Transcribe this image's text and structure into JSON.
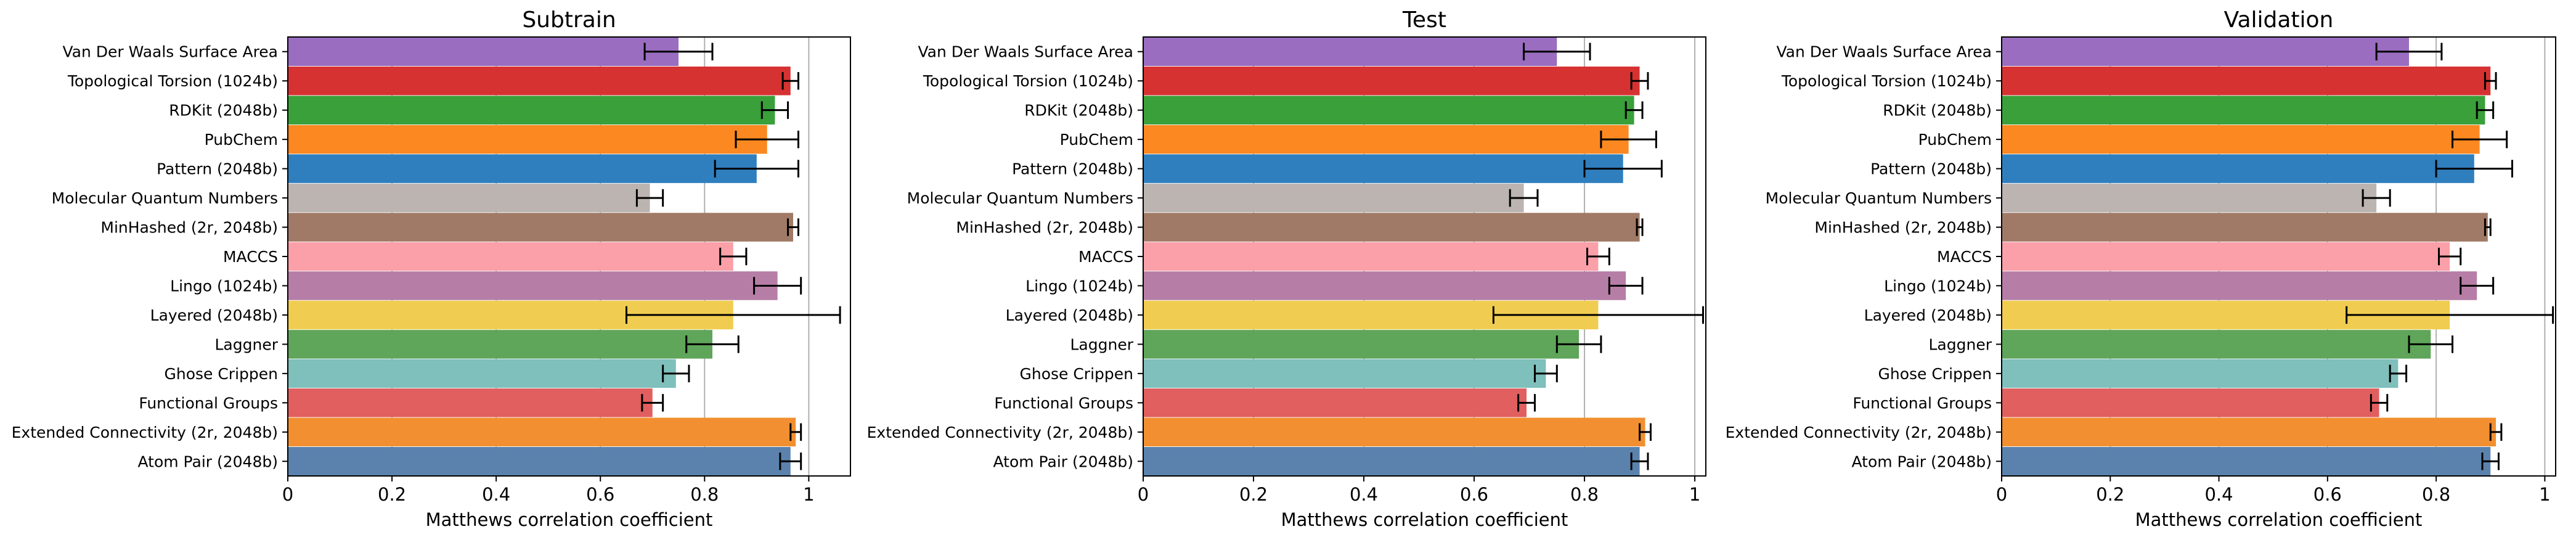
{
  "figure": {
    "charts_count": 3
  },
  "categories": [
    "Van Der Waals Surface Area",
    "Topological Torsion (1024b)",
    "RDKit (2048b)",
    "PubChem",
    "Pattern (2048b)",
    "Molecular Quantum Numbers",
    "MinHashed (2r, 2048b)",
    "MACCS",
    "Lingo (1024b)",
    "Layered (2048b)",
    "Laggner",
    "Ghose Crippen",
    "Functional Groups",
    "Extended Connectivity (2r, 2048b)",
    "Atom Pair (2048b)"
  ],
  "colors": [
    "#9a6dc0",
    "#d63232",
    "#3aa03a",
    "#fb8820",
    "#2f7fbf",
    "#bbb4b0",
    "#a07a66",
    "#fba0a8",
    "#b67ea6",
    "#f0cd50",
    "#5fa55a",
    "#7fbfbc",
    "#e15f5f",
    "#f28f30",
    "#5a82ad"
  ],
  "chart_data": [
    {
      "type": "bar",
      "orientation": "horizontal",
      "title": "Subtrain",
      "xlabel": "Matthews correlation coefficient",
      "xlim": [
        0,
        1.08
      ],
      "xticks": [
        0,
        0.2,
        0.4,
        0.6,
        0.8,
        1
      ],
      "xtick_labels": [
        "0",
        "0.2",
        "0.4",
        "0.6",
        "0.8",
        "1"
      ],
      "grid": "x",
      "values": [
        0.75,
        0.965,
        0.935,
        0.92,
        0.9,
        0.695,
        0.97,
        0.855,
        0.94,
        0.855,
        0.815,
        0.745,
        0.7,
        0.975,
        0.965
      ],
      "errors": [
        0.065,
        0.015,
        0.025,
        0.06,
        0.08,
        0.025,
        0.01,
        0.025,
        0.045,
        0.205,
        0.05,
        0.025,
        0.02,
        0.01,
        0.02
      ]
    },
    {
      "type": "bar",
      "orientation": "horizontal",
      "title": "Test",
      "xlabel": "Matthews correlation coefficient",
      "xlim": [
        0,
        1.02
      ],
      "xticks": [
        0,
        0.2,
        0.4,
        0.6,
        0.8,
        1
      ],
      "xtick_labels": [
        "0",
        "0.2",
        "0.4",
        "0.6",
        "0.8",
        "1"
      ],
      "grid": "x",
      "values": [
        0.75,
        0.9,
        0.89,
        0.88,
        0.87,
        0.69,
        0.9,
        0.825,
        0.875,
        0.825,
        0.79,
        0.73,
        0.695,
        0.91,
        0.9
      ],
      "errors": [
        0.06,
        0.015,
        0.015,
        0.05,
        0.07,
        0.025,
        0.005,
        0.02,
        0.03,
        0.19,
        0.04,
        0.02,
        0.015,
        0.01,
        0.015
      ]
    },
    {
      "type": "bar",
      "orientation": "horizontal",
      "title": "Validation",
      "xlabel": "Matthews correlation coefficient",
      "xlim": [
        0,
        1.02
      ],
      "xticks": [
        0,
        0.2,
        0.4,
        0.6,
        0.8,
        1
      ],
      "xtick_labels": [
        "0",
        "0.2",
        "0.4",
        "0.6",
        "0.8",
        "1"
      ],
      "grid": "x",
      "values": [
        0.75,
        0.9,
        0.89,
        0.88,
        0.87,
        0.69,
        0.895,
        0.825,
        0.875,
        0.825,
        0.79,
        0.73,
        0.695,
        0.91,
        0.9
      ],
      "errors": [
        0.06,
        0.01,
        0.015,
        0.05,
        0.07,
        0.025,
        0.005,
        0.02,
        0.03,
        0.19,
        0.04,
        0.015,
        0.015,
        0.01,
        0.015
      ]
    }
  ]
}
